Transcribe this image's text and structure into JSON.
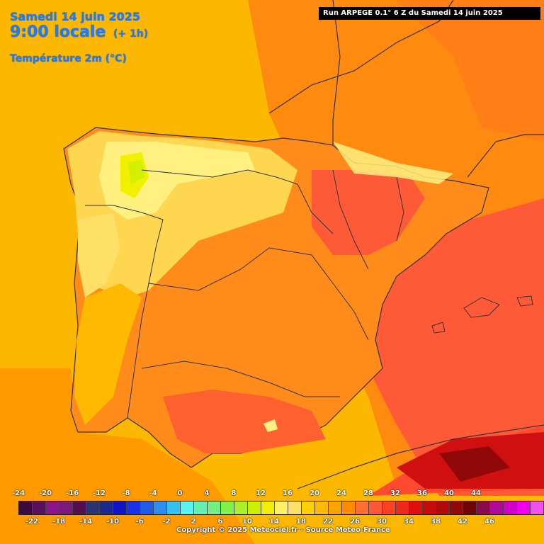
{
  "header": {
    "date": "Samedi 14 juin 2025",
    "time": "9:00 locale",
    "offset": "(+ 1h)",
    "field": "Température 2m (°C)"
  },
  "run_info": "Run ARPEGE 0.1° 6 Z du Samedi 14 juin 2025",
  "legend": {
    "top_labels": [
      "-24",
      "-20",
      "-16",
      "-12",
      "-8",
      "-4",
      "0",
      "4",
      "8",
      "12",
      "16",
      "20",
      "24",
      "28",
      "32",
      "36",
      "40",
      "44"
    ],
    "bottom_labels": [
      "-22",
      "-18",
      "-14",
      "-10",
      "-6",
      "-2",
      "2",
      "6",
      "10",
      "14",
      "18",
      "22",
      "26",
      "30",
      "34",
      "38",
      "42",
      "46"
    ],
    "colors": [
      "#3d0a3d",
      "#5a0f5a",
      "#8a168a",
      "#7a1b7a",
      "#52104e",
      "#2b3470",
      "#1c2a8c",
      "#0f14c8",
      "#1a32e6",
      "#1f5be6",
      "#2b8ff0",
      "#33c2f0",
      "#5af5f0",
      "#66f0b0",
      "#72f080",
      "#80f04a",
      "#aaf02a",
      "#ccf000",
      "#f0f000",
      "#fff066",
      "#ffe066",
      "#ffd000",
      "#ffba00",
      "#ffa200",
      "#ff8a00",
      "#ff7030",
      "#ff5838",
      "#ff4020",
      "#f02a1a",
      "#e01010",
      "#c80a0a",
      "#b00a0a",
      "#900808",
      "#700505",
      "#8a0a4a",
      "#b00a9a",
      "#d000c8",
      "#f000f0",
      "#f050f0",
      "#f090f8"
    ]
  },
  "copyright": "Copyright © 2025 Meteociel.fr - Source Meteo-France"
}
